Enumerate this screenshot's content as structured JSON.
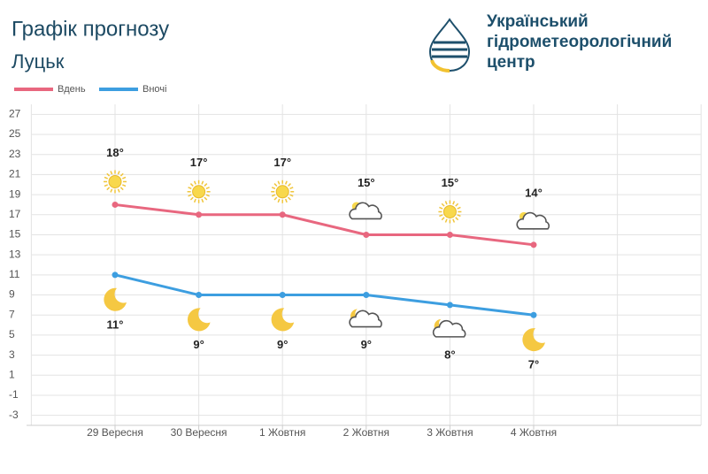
{
  "header": {
    "title": "Графік прогнозу",
    "city": "Луцьк",
    "logo_lines": [
      "Український",
      "гідрометеорологічний",
      "центр"
    ]
  },
  "chart_data": {
    "type": "line",
    "categories": [
      "29 Вересня",
      "30 Вересня",
      "1 Жовтня",
      "2 Жовтня",
      "3 Жовтня",
      "4 Жовтня"
    ],
    "series": [
      {
        "name": "Вдень",
        "color": "#e8677f",
        "values": [
          18,
          17,
          17,
          15,
          15,
          14
        ],
        "value_labels": [
          "18°",
          "17°",
          "17°",
          "15°",
          "15°",
          "14°"
        ]
      },
      {
        "name": "Вночі",
        "color": "#3d9ee0",
        "values": [
          11,
          9,
          9,
          9,
          8,
          7
        ],
        "value_labels": [
          "11°",
          "9°",
          "9°",
          "9°",
          "8°",
          "7°"
        ]
      }
    ],
    "ylim": [
      -4,
      28
    ],
    "yticks": [
      27,
      25,
      23,
      21,
      19,
      17,
      15,
      13,
      11,
      9,
      7,
      5,
      3,
      1,
      -1,
      -3
    ],
    "grid": true
  }
}
